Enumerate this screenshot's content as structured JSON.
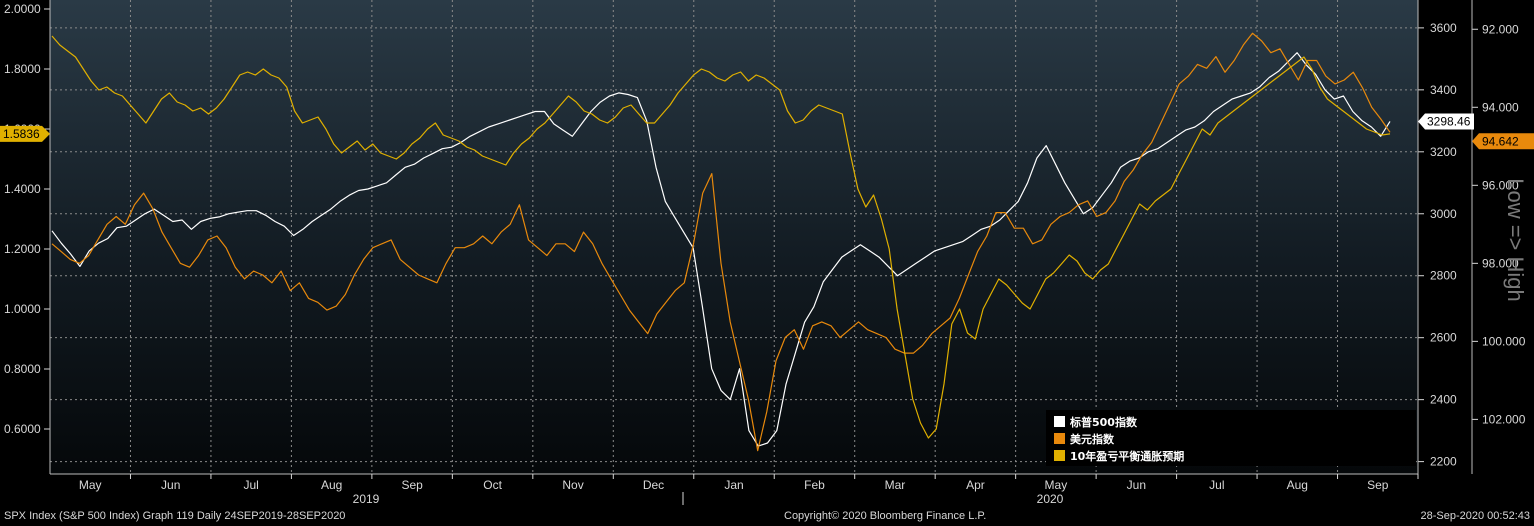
{
  "chart_data": {
    "type": "line",
    "x_labels": [
      "May",
      "Jun",
      "Jul",
      "Aug",
      "Sep",
      "Oct",
      "Nov",
      "Dec",
      "Jan",
      "Feb",
      "Mar",
      "Apr",
      "May",
      "Jun",
      "Jul",
      "Aug",
      "Sep"
    ],
    "year_labels": [
      "2019",
      "2020"
    ],
    "left_axis": {
      "ticks": [
        "2.0000",
        "1.8000",
        "1.6000",
        "1.4000",
        "1.2000",
        "1.0000",
        "0.8000",
        "0.6000"
      ],
      "ylim": [
        0.45,
        2.03
      ]
    },
    "right_axis_1": {
      "ticks": [
        "3600",
        "3400",
        "3200",
        "3000",
        "2800",
        "2600",
        "2400",
        "2200"
      ],
      "ylim": [
        2160,
        3690
      ]
    },
    "right_axis_2": {
      "ticks": [
        "92.000",
        "94.000",
        "96.000",
        "98.000",
        "100.000",
        "102.000"
      ],
      "inverted": true,
      "ylim": [
        91.25,
        103.4
      ]
    },
    "right_axis_2_label": "Low => High",
    "series": [
      {
        "name": "标普500指数",
        "axis": "right_axis_1",
        "color": "#ffffff",
        "values": [
          2945,
          2905,
          2870,
          2830,
          2880,
          2905,
          2920,
          2955,
          2960,
          2980,
          3000,
          3015,
          2995,
          2975,
          2980,
          2950,
          2975,
          2985,
          2990,
          3000,
          3005,
          3010,
          3010,
          2995,
          2975,
          2960,
          2930,
          2950,
          2975,
          2995,
          3015,
          3040,
          3060,
          3075,
          3080,
          3090,
          3100,
          3125,
          3150,
          3160,
          3180,
          3195,
          3210,
          3215,
          3230,
          3250,
          3265,
          3280,
          3290,
          3300,
          3310,
          3320,
          3330,
          3330,
          3290,
          3270,
          3250,
          3290,
          3330,
          3360,
          3380,
          3390,
          3385,
          3375,
          3300,
          3150,
          3040,
          2990,
          2940,
          2890,
          2700,
          2500,
          2430,
          2400,
          2500,
          2300,
          2250,
          2260,
          2300,
          2450,
          2550,
          2650,
          2700,
          2780,
          2820,
          2860,
          2880,
          2900,
          2880,
          2860,
          2830,
          2800,
          2820,
          2840,
          2860,
          2880,
          2890,
          2900,
          2910,
          2930,
          2950,
          2960,
          2980,
          3010,
          3040,
          3100,
          3180,
          3220,
          3160,
          3100,
          3050,
          3000,
          3020,
          3060,
          3100,
          3150,
          3170,
          3180,
          3200,
          3210,
          3230,
          3250,
          3270,
          3280,
          3300,
          3330,
          3350,
          3370,
          3380,
          3390,
          3410,
          3440,
          3460,
          3490,
          3520,
          3480,
          3450,
          3400,
          3370,
          3380,
          3330,
          3300,
          3280,
          3250,
          3298
        ]
      },
      {
        "name": "美元指数",
        "axis": "right_axis_2",
        "color": "#e8890c",
        "values": [
          97.5,
          97.7,
          97.9,
          98.0,
          97.8,
          97.4,
          97.0,
          96.8,
          97.0,
          96.5,
          96.2,
          96.6,
          97.2,
          97.6,
          98.0,
          98.1,
          97.8,
          97.4,
          97.3,
          97.6,
          98.1,
          98.4,
          98.2,
          98.3,
          98.5,
          98.2,
          98.7,
          98.5,
          98.9,
          99.0,
          99.2,
          99.1,
          98.8,
          98.3,
          97.9,
          97.6,
          97.5,
          97.4,
          97.9,
          98.1,
          98.3,
          98.4,
          98.5,
          98.0,
          97.6,
          97.6,
          97.5,
          97.3,
          97.5,
          97.2,
          97.0,
          96.5,
          97.4,
          97.6,
          97.8,
          97.5,
          97.5,
          97.7,
          97.2,
          97.5,
          98.0,
          98.4,
          98.8,
          99.2,
          99.5,
          99.8,
          99.3,
          99.0,
          98.7,
          98.5,
          97.5,
          96.2,
          95.7,
          98.0,
          99.5,
          100.5,
          101.5,
          102.8,
          101.8,
          100.5,
          99.9,
          99.7,
          100.2,
          99.6,
          99.5,
          99.6,
          99.9,
          99.7,
          99.5,
          99.7,
          99.8,
          99.9,
          100.2,
          100.3,
          100.3,
          100.1,
          99.8,
          99.6,
          99.4,
          98.9,
          98.3,
          97.7,
          97.3,
          96.7,
          96.7,
          97.1,
          97.1,
          97.5,
          97.4,
          97.0,
          96.8,
          96.7,
          96.5,
          96.4,
          96.8,
          96.7,
          96.4,
          95.9,
          95.6,
          95.2,
          94.9,
          94.4,
          93.9,
          93.4,
          93.2,
          92.9,
          93.0,
          92.7,
          93.1,
          92.8,
          92.4,
          92.1,
          92.3,
          92.6,
          92.5,
          92.9,
          93.3,
          92.8,
          92.8,
          93.2,
          93.4,
          93.3,
          93.1,
          93.5,
          94.0,
          94.3,
          94.64
        ]
      },
      {
        "name": "10年盈亏平衡通胀预期",
        "axis": "left_axis",
        "color": "#e0b000",
        "values": [
          1.91,
          1.88,
          1.86,
          1.84,
          1.8,
          1.76,
          1.73,
          1.74,
          1.72,
          1.71,
          1.68,
          1.65,
          1.62,
          1.66,
          1.7,
          1.72,
          1.69,
          1.68,
          1.66,
          1.67,
          1.65,
          1.67,
          1.7,
          1.74,
          1.78,
          1.79,
          1.78,
          1.8,
          1.78,
          1.77,
          1.74,
          1.66,
          1.62,
          1.63,
          1.64,
          1.6,
          1.55,
          1.52,
          1.54,
          1.56,
          1.53,
          1.55,
          1.52,
          1.51,
          1.5,
          1.52,
          1.55,
          1.57,
          1.6,
          1.62,
          1.58,
          1.57,
          1.56,
          1.54,
          1.53,
          1.51,
          1.5,
          1.49,
          1.48,
          1.52,
          1.55,
          1.57,
          1.6,
          1.62,
          1.65,
          1.68,
          1.71,
          1.69,
          1.66,
          1.65,
          1.63,
          1.62,
          1.64,
          1.67,
          1.68,
          1.65,
          1.62,
          1.62,
          1.65,
          1.68,
          1.72,
          1.75,
          1.78,
          1.8,
          1.79,
          1.77,
          1.76,
          1.78,
          1.79,
          1.76,
          1.78,
          1.77,
          1.75,
          1.73,
          1.66,
          1.62,
          1.63,
          1.66,
          1.68,
          1.67,
          1.66,
          1.65,
          1.52,
          1.4,
          1.34,
          1.38,
          1.3,
          1.2,
          1.0,
          0.85,
          0.7,
          0.62,
          0.57,
          0.6,
          0.75,
          0.95,
          1.0,
          0.92,
          0.9,
          1.0,
          1.05,
          1.1,
          1.08,
          1.05,
          1.02,
          1.0,
          1.05,
          1.1,
          1.12,
          1.15,
          1.18,
          1.16,
          1.12,
          1.1,
          1.13,
          1.15,
          1.2,
          1.25,
          1.3,
          1.35,
          1.33,
          1.36,
          1.38,
          1.4,
          1.45,
          1.5,
          1.55,
          1.6,
          1.58,
          1.62,
          1.64,
          1.66,
          1.68,
          1.7,
          1.72,
          1.74,
          1.76,
          1.78,
          1.8,
          1.82,
          1.84,
          1.8,
          1.74,
          1.7,
          1.68,
          1.66,
          1.64,
          1.62,
          1.6,
          1.59,
          1.58,
          1.5836
        ]
      }
    ],
    "last_values": {
      "spx": "3298.46",
      "dxy": "94.642",
      "breakeven": "1.5836"
    },
    "grid": true,
    "legend_position": "bottom-right"
  },
  "footer": {
    "left": "SPX Index (S&P 500 Index) Graph 119  Daily 24SEP2019-28SEP2020",
    "center": "Copyright© 2020 Bloomberg Finance L.P.",
    "right": "28-Sep-2020 00:52:43"
  },
  "colors": {
    "background_top": "#2a3a46",
    "background_bottom": "#05080a",
    "grid": "#8a8a8a",
    "axis_text": "#d8d8d8"
  }
}
